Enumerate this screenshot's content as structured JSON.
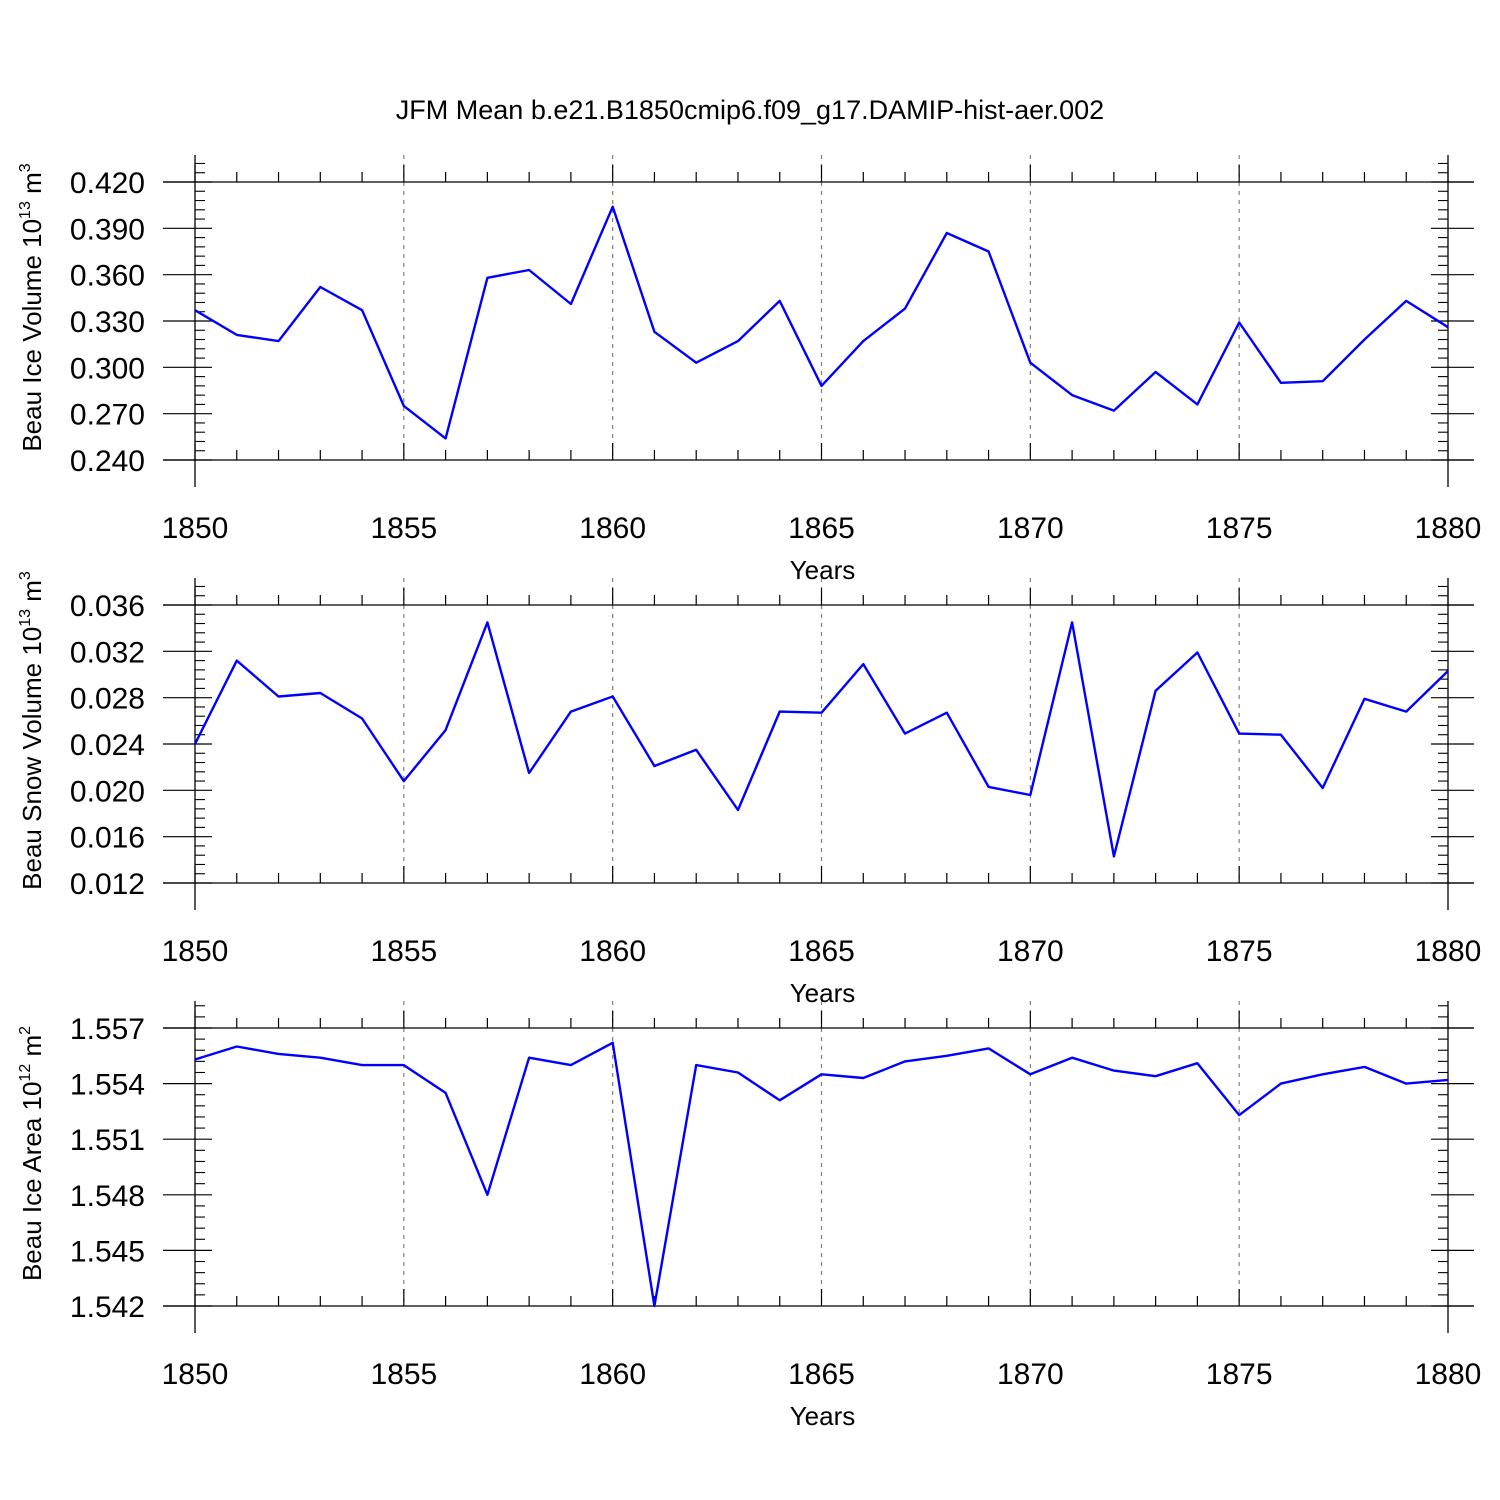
{
  "title": "JFM Mean b.e21.B1850cmip6.f09_g17.DAMIP-hist-aer.002",
  "colors": {
    "line": "#0000ff",
    "axis": "#000000",
    "grid": "#808080"
  },
  "chart_data": [
    {
      "type": "line",
      "ylabel": {
        "prefix": "Beau Ice Volume 10",
        "exp": "13",
        "unit": " m",
        "unit_exp": "3"
      },
      "xlabel": "Years",
      "xlim": [
        1850,
        1880
      ],
      "ylim": [
        0.24,
        0.42
      ],
      "yticks": [
        "0.420",
        "0.390",
        "0.360",
        "0.330",
        "0.300",
        "0.270",
        "0.240"
      ],
      "xticks": [
        "1850",
        "1855",
        "1860",
        "1865",
        "1870",
        "1875",
        "1880"
      ],
      "grid": "vertical dashed at major x ticks",
      "x": [
        1850,
        1851,
        1852,
        1853,
        1854,
        1855,
        1856,
        1857,
        1858,
        1859,
        1860,
        1861,
        1862,
        1863,
        1864,
        1865,
        1866,
        1867,
        1868,
        1869,
        1870,
        1871,
        1872,
        1873,
        1874,
        1875,
        1876,
        1877,
        1878,
        1879,
        1880
      ],
      "values": [
        0.337,
        0.321,
        0.317,
        0.352,
        0.337,
        0.275,
        0.254,
        0.358,
        0.363,
        0.341,
        0.404,
        0.323,
        0.303,
        0.317,
        0.343,
        0.288,
        0.317,
        0.338,
        0.387,
        0.375,
        0.303,
        0.282,
        0.272,
        0.297,
        0.276,
        0.329,
        0.29,
        0.291,
        0.318,
        0.343,
        0.326
      ]
    },
    {
      "type": "line",
      "ylabel": {
        "prefix": "Beau Snow Volume 10",
        "exp": "13",
        "unit": " m",
        "unit_exp": "3"
      },
      "xlabel": "Years",
      "xlim": [
        1850,
        1880
      ],
      "ylim": [
        0.012,
        0.036
      ],
      "yticks": [
        "0.036",
        "0.032",
        "0.028",
        "0.024",
        "0.020",
        "0.016",
        "0.012"
      ],
      "xticks": [
        "1850",
        "1855",
        "1860",
        "1865",
        "1870",
        "1875",
        "1880"
      ],
      "grid": "vertical dashed at major x ticks",
      "x": [
        1850,
        1851,
        1852,
        1853,
        1854,
        1855,
        1856,
        1857,
        1858,
        1859,
        1860,
        1861,
        1862,
        1863,
        1864,
        1865,
        1866,
        1867,
        1868,
        1869,
        1870,
        1871,
        1872,
        1873,
        1874,
        1875,
        1876,
        1877,
        1878,
        1879,
        1880
      ],
      "values": [
        0.024,
        0.0312,
        0.0281,
        0.0284,
        0.0262,
        0.0208,
        0.0252,
        0.0345,
        0.0215,
        0.0268,
        0.0281,
        0.0221,
        0.0235,
        0.0183,
        0.0268,
        0.0267,
        0.0309,
        0.0249,
        0.0267,
        0.0203,
        0.0196,
        0.0345,
        0.0143,
        0.0286,
        0.0319,
        0.0249,
        0.0248,
        0.0202,
        0.0279,
        0.0268,
        0.0303
      ]
    },
    {
      "type": "line",
      "ylabel": {
        "prefix": "Beau Ice Area 10",
        "exp": "12",
        "unit": " m",
        "unit_exp": "2"
      },
      "xlabel": "Years",
      "xlim": [
        1850,
        1880
      ],
      "ylim": [
        1.542,
        1.557
      ],
      "yticks": [
        "1.557",
        "1.554",
        "1.551",
        "1.548",
        "1.545",
        "1.542"
      ],
      "xticks": [
        "1850",
        "1855",
        "1860",
        "1865",
        "1870",
        "1875",
        "1880"
      ],
      "grid": "vertical dashed at major x ticks",
      "x": [
        1850,
        1851,
        1852,
        1853,
        1854,
        1855,
        1856,
        1857,
        1858,
        1859,
        1860,
        1861,
        1862,
        1863,
        1864,
        1865,
        1866,
        1867,
        1868,
        1869,
        1870,
        1871,
        1872,
        1873,
        1874,
        1875,
        1876,
        1877,
        1878,
        1879,
        1880
      ],
      "values": [
        1.5553,
        1.556,
        1.5556,
        1.5554,
        1.555,
        1.555,
        1.5535,
        1.548,
        1.5554,
        1.555,
        1.5562,
        1.542,
        1.555,
        1.5546,
        1.5531,
        1.5545,
        1.5543,
        1.5552,
        1.5555,
        1.5559,
        1.5545,
        1.5554,
        1.5547,
        1.5544,
        1.5551,
        1.5523,
        1.554,
        1.5545,
        1.5549,
        1.554,
        1.5542
      ]
    }
  ]
}
